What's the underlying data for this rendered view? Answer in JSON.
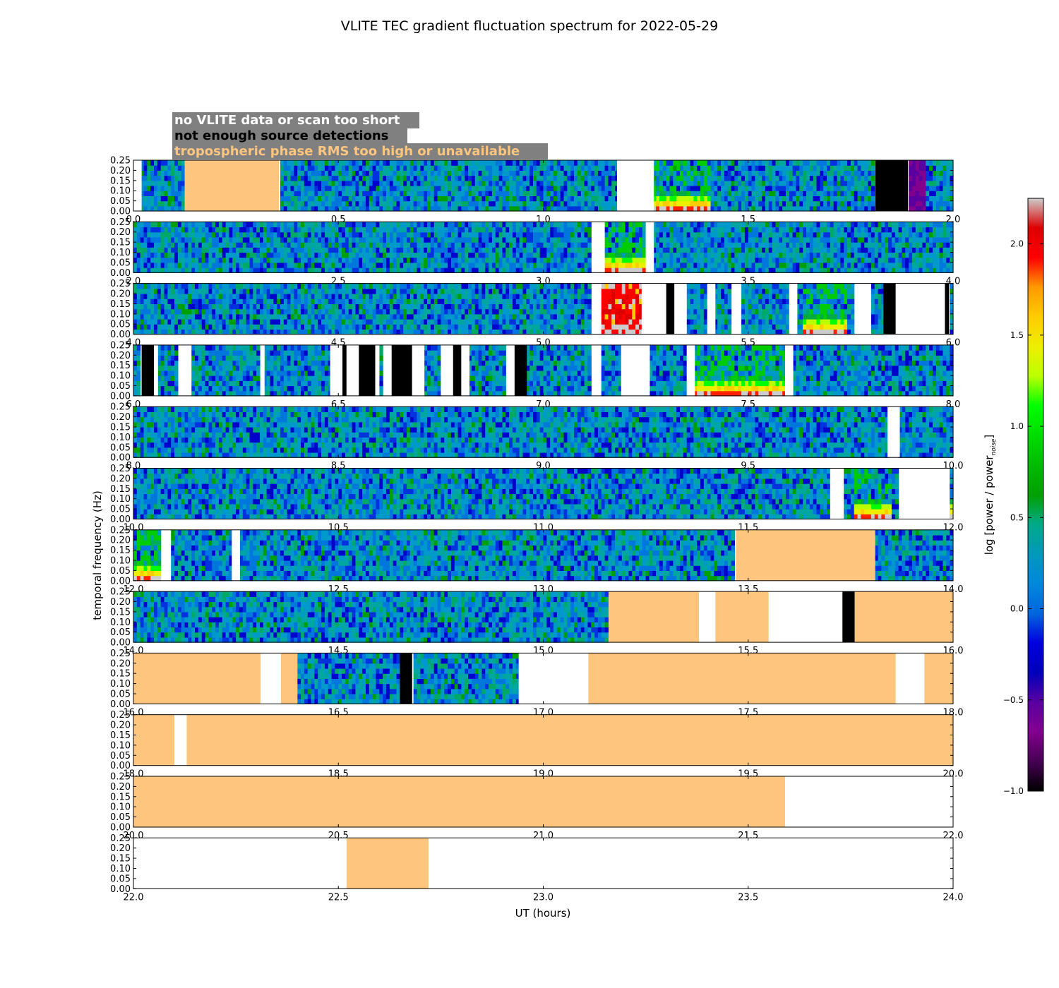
{
  "chart_data": {
    "type": "heatmap",
    "title": "VLITE TEC gradient fluctuation spectrum for 2022-05-29",
    "xlabel": "UT (hours)",
    "ylabel": "temporal frequency (Hz)",
    "colorbar_label": "log [power / power",
    "colorbar_label_sub": "noise",
    "colorbar_label_end": "]",
    "colorbar_range": [
      -1.0,
      2.25
    ],
    "colorbar_ticks": [
      "−1.0",
      "−0.5",
      "0.0",
      "0.5",
      "1.0",
      "1.5",
      "2.0"
    ],
    "colormap": "nipy_spectral",
    "y_ticks": [
      "0.00",
      "0.05",
      "0.10",
      "0.15",
      "0.20",
      "0.25"
    ],
    "ylim": [
      0,
      0.25
    ],
    "legend": {
      "placement": "top-left",
      "background": "#808080",
      "items": [
        {
          "label": "no VLITE data or scan too short",
          "color": "#ffffff"
        },
        {
          "label": "not enough source detections",
          "color": "#000000"
        },
        {
          "label": "tropospheric phase RMS too high or unavailable",
          "color": "#fdc57e"
        }
      ]
    },
    "mask_colors": {
      "white": "#ffffff",
      "black": "#000000",
      "orange": "#fdc57e"
    },
    "rows": [
      {
        "range": [
          0,
          2
        ],
        "ticks": [
          "0.0",
          "0.5",
          "1.0",
          "1.5",
          "2.0"
        ],
        "masks": [
          [
            0,
            0.02,
            "white"
          ],
          [
            0.125,
            0.355,
            "orange"
          ],
          [
            1.18,
            1.27,
            "white"
          ],
          [
            1.81,
            1.89,
            "black"
          ]
        ],
        "features": [
          [
            1.27,
            1.41,
            "band"
          ],
          [
            1.89,
            1.93,
            "purple"
          ]
        ]
      },
      {
        "range": [
          2,
          4
        ],
        "ticks": [
          "2.0",
          "2.5",
          "3.0",
          "3.5",
          "4.0"
        ],
        "masks": [
          [
            3.12,
            3.15,
            "white"
          ],
          [
            3.25,
            3.27,
            "white"
          ]
        ],
        "features": [
          [
            3.15,
            3.25,
            "band"
          ]
        ]
      },
      {
        "range": [
          4,
          6
        ],
        "ticks": [
          "4.0",
          "4.5",
          "5.0",
          "5.5",
          "6.0"
        ],
        "masks": [
          [
            5.12,
            5.14,
            "white"
          ],
          [
            5.24,
            5.3,
            "white"
          ],
          [
            5.3,
            5.32,
            "black"
          ],
          [
            5.32,
            5.35,
            "white"
          ],
          [
            5.4,
            5.42,
            "white"
          ],
          [
            5.46,
            5.48,
            "white"
          ],
          [
            5.6,
            5.62,
            "white"
          ],
          [
            5.76,
            5.8,
            "white"
          ],
          [
            5.83,
            5.86,
            "black"
          ],
          [
            5.86,
            5.98,
            "white"
          ],
          [
            5.98,
            5.99,
            "black"
          ]
        ],
        "features": [
          [
            5.14,
            5.24,
            "hot"
          ],
          [
            5.63,
            5.74,
            "band"
          ]
        ]
      },
      {
        "range": [
          6,
          8
        ],
        "ticks": [
          "6.0",
          "6.5",
          "7.0",
          "7.5",
          "8.0"
        ],
        "masks": [
          [
            6.02,
            6.05,
            "black"
          ],
          [
            6.05,
            6.06,
            "white"
          ],
          [
            6.11,
            6.14,
            "white"
          ],
          [
            6.31,
            6.32,
            "white"
          ],
          [
            6.48,
            6.51,
            "white"
          ],
          [
            6.51,
            6.52,
            "black"
          ],
          [
            6.52,
            6.55,
            "white"
          ],
          [
            6.55,
            6.59,
            "black"
          ],
          [
            6.59,
            6.6,
            "white"
          ],
          [
            6.61,
            6.63,
            "white"
          ],
          [
            6.63,
            6.68,
            "black"
          ],
          [
            6.68,
            6.71,
            "white"
          ],
          [
            6.75,
            6.78,
            "white"
          ],
          [
            6.78,
            6.8,
            "black"
          ],
          [
            6.8,
            6.82,
            "white"
          ],
          [
            6.91,
            6.93,
            "white"
          ],
          [
            6.93,
            6.96,
            "black"
          ],
          [
            7.12,
            7.14,
            "white"
          ],
          [
            7.19,
            7.26,
            "white"
          ],
          [
            7.35,
            7.37,
            "white"
          ],
          [
            7.59,
            7.61,
            "white"
          ]
        ],
        "features": [
          [
            7.37,
            7.59,
            "band"
          ]
        ]
      },
      {
        "range": [
          8,
          10
        ],
        "ticks": [
          "8.0",
          "8.5",
          "9.0",
          "9.5",
          "10.0"
        ],
        "masks": [
          [
            9.84,
            9.87,
            "white"
          ]
        ],
        "features": []
      },
      {
        "range": [
          10,
          12
        ],
        "ticks": [
          "10.0",
          "10.5",
          "11.0",
          "11.5",
          "12.0"
        ],
        "masks": [
          [
            11.7,
            11.73,
            "white"
          ],
          [
            11.87,
            11.99,
            "white"
          ]
        ],
        "features": [
          [
            11.76,
            11.85,
            "band"
          ],
          [
            11.99,
            12.0,
            "band"
          ]
        ]
      },
      {
        "range": [
          12,
          14
        ],
        "ticks": [
          "12.0",
          "12.5",
          "13.0",
          "13.5",
          "14.0"
        ],
        "masks": [
          [
            12.07,
            12.09,
            "white"
          ],
          [
            12.24,
            12.26,
            "white"
          ],
          [
            13.47,
            13.81,
            "orange"
          ]
        ],
        "features": [
          [
            12.0,
            12.07,
            "band"
          ]
        ]
      },
      {
        "range": [
          14,
          16
        ],
        "ticks": [
          "14.0",
          "14.5",
          "15.0",
          "15.5",
          "16.0"
        ],
        "masks": [
          [
            15.16,
            15.38,
            "orange"
          ],
          [
            15.38,
            15.42,
            "white"
          ],
          [
            15.42,
            15.55,
            "orange"
          ],
          [
            15.55,
            15.73,
            "white"
          ],
          [
            15.73,
            15.76,
            "black"
          ],
          [
            15.76,
            16.0,
            "orange"
          ]
        ],
        "features": []
      },
      {
        "range": [
          16,
          18
        ],
        "ticks": [
          "16.0",
          "16.5",
          "17.0",
          "17.5",
          "18.0"
        ],
        "masks": [
          [
            16.0,
            16.31,
            "orange"
          ],
          [
            16.31,
            16.36,
            "white"
          ],
          [
            16.36,
            16.4,
            "orange"
          ],
          [
            16.65,
            16.68,
            "black"
          ],
          [
            16.94,
            17.11,
            "white"
          ],
          [
            17.11,
            17.86,
            "orange"
          ],
          [
            17.86,
            17.93,
            "white"
          ],
          [
            17.93,
            18.0,
            "orange"
          ]
        ],
        "features": []
      },
      {
        "range": [
          18,
          20
        ],
        "ticks": [
          "18.0",
          "18.5",
          "19.0",
          "19.5",
          "20.0"
        ],
        "masks": [
          [
            18.0,
            18.1,
            "orange"
          ],
          [
            18.1,
            18.13,
            "white"
          ],
          [
            18.13,
            20.0,
            "orange"
          ]
        ],
        "features": []
      },
      {
        "range": [
          20,
          22
        ],
        "ticks": [
          "20.0",
          "20.5",
          "21.0",
          "21.5",
          "22.0"
        ],
        "masks": [
          [
            20.0,
            21.59,
            "orange"
          ],
          [
            21.59,
            22.0,
            "white"
          ]
        ],
        "features": []
      },
      {
        "range": [
          22,
          24
        ],
        "ticks": [
          "22.0",
          "22.5",
          "23.0",
          "23.5",
          "24.0"
        ],
        "masks": [
          [
            22.0,
            22.52,
            "white"
          ],
          [
            22.52,
            22.72,
            "orange"
          ],
          [
            22.72,
            24.0,
            "white"
          ]
        ],
        "features": []
      }
    ]
  }
}
